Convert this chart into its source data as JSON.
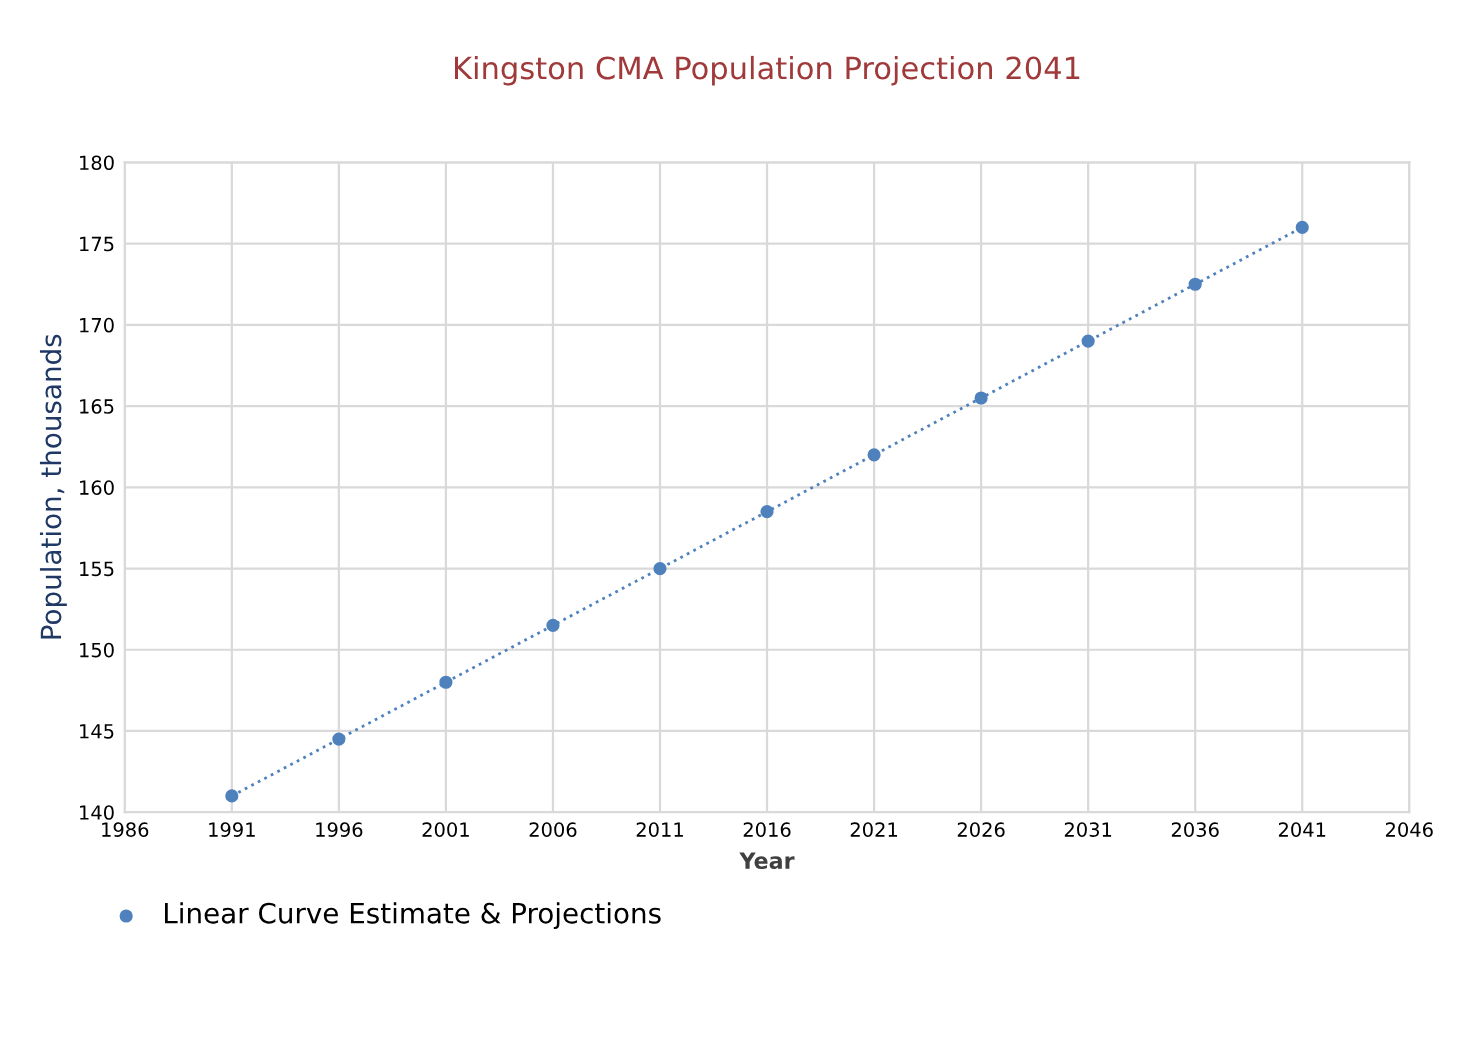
{
  "chart_data": {
    "type": "scatter",
    "title": "Kingston CMA Population Projection 2041",
    "xlabel": "Year",
    "ylabel": "Population, thousands",
    "x": [
      1991,
      1996,
      2001,
      2006,
      2011,
      2016,
      2021,
      2026,
      2031,
      2036,
      2041
    ],
    "series": [
      {
        "name": "Linear Curve Estimate & Projections",
        "color": "#4f81bd",
        "values": [
          141,
          144.5,
          148,
          151.5,
          155,
          158.5,
          162,
          165.5,
          169,
          172.5,
          176
        ],
        "marker": "circle"
      },
      {
        "type": "line",
        "color": "#4f81bd",
        "x": [
          1991,
          2041
        ],
        "values": [
          141,
          176
        ],
        "line_style": "dotted"
      }
    ],
    "xlim": [
      1986,
      2046
    ],
    "xticks": [
      1986,
      1991,
      1996,
      2001,
      2006,
      2011,
      2016,
      2021,
      2026,
      2031,
      2036,
      2041,
      2046
    ],
    "ylim": [
      140,
      180
    ],
    "yticks": [
      140,
      145,
      150,
      155,
      160,
      165,
      170,
      175,
      180
    ],
    "grid": true,
    "legend": "bottom left"
  }
}
